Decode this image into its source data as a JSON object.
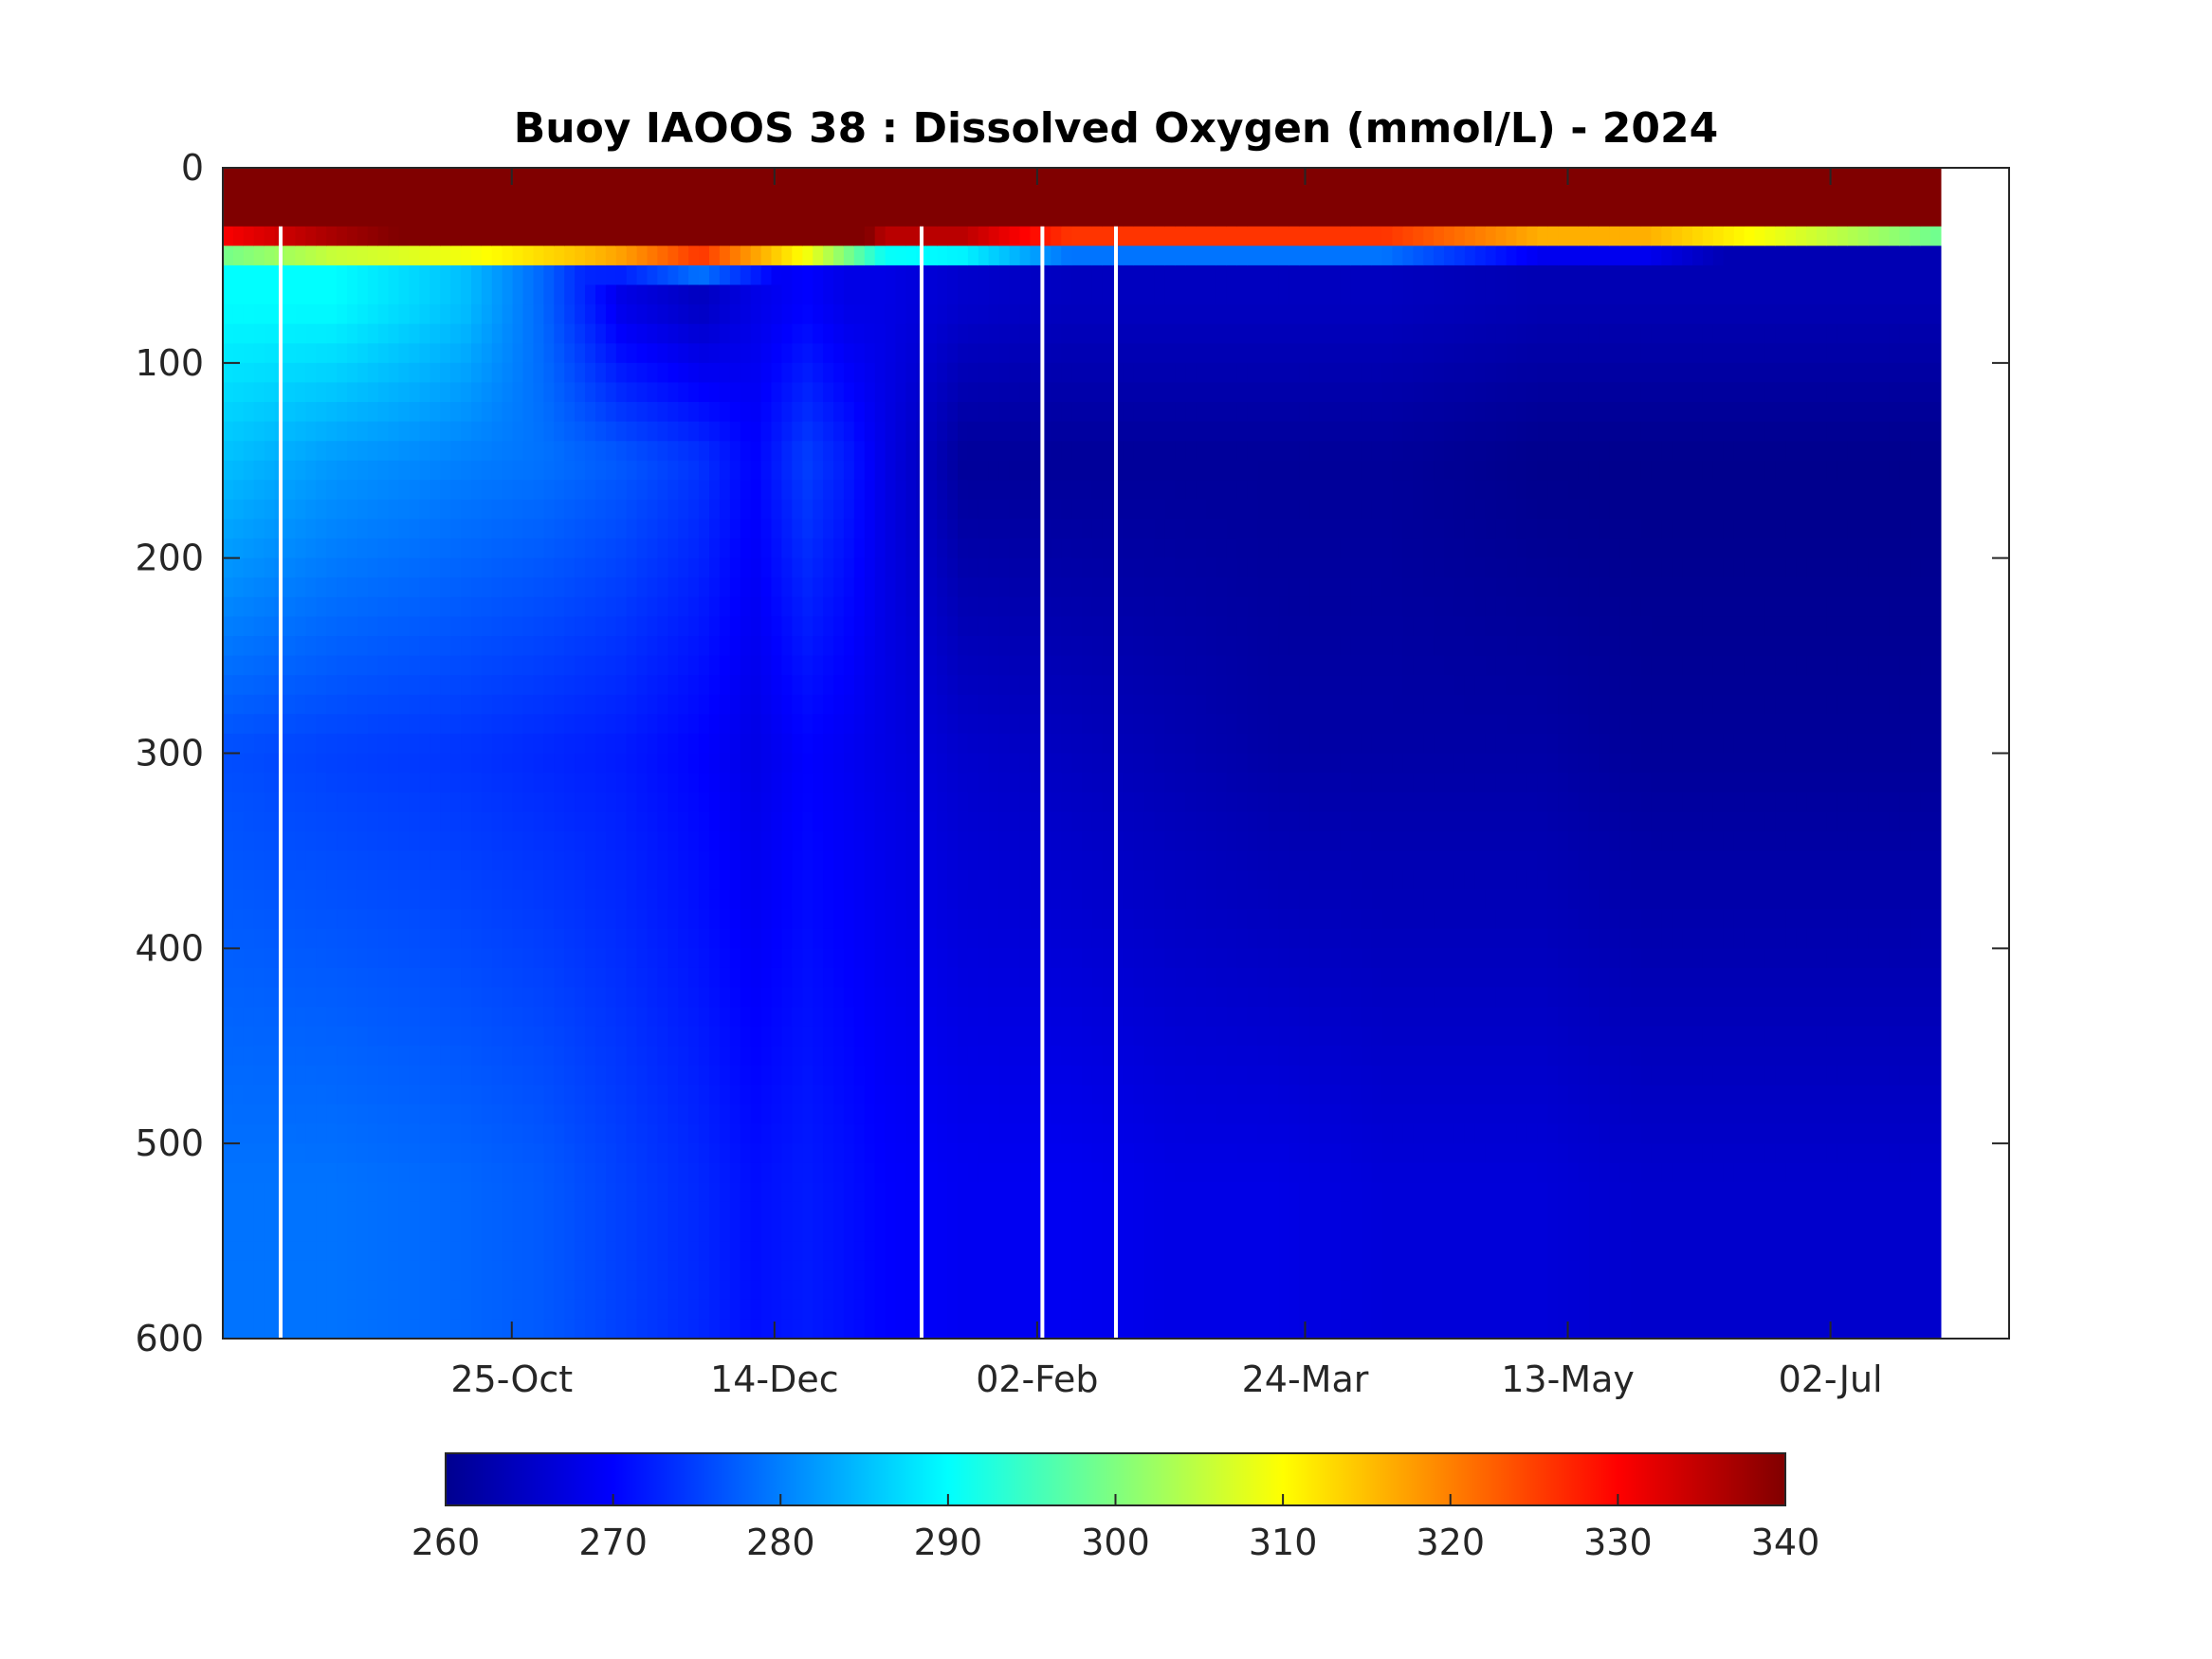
{
  "chart_data": {
    "type": "heatmap",
    "title": "Buoy IAOOS 38 : Dissolved Oxygen (mmol/L) - 2024",
    "xlabel": "",
    "ylabel": "",
    "x_ticks": [
      "25-Oct",
      "14-Dec",
      "02-Feb",
      "24-Mar",
      "13-May",
      "02-Jul"
    ],
    "y_ticks": [
      "0",
      "100",
      "200",
      "300",
      "400",
      "500",
      "600"
    ],
    "ylim": [
      0,
      600
    ],
    "y_reversed": true,
    "x_range": [
      "2023-08-31",
      "2024-08-05"
    ],
    "data_x_range": [
      "2023-08-31",
      "2024-07-23"
    ],
    "colorbar": {
      "colormap": "jet",
      "clim": [
        260,
        340
      ],
      "ticks": [
        "260",
        "270",
        "280",
        "290",
        "300",
        "310",
        "320",
        "330",
        "340"
      ]
    },
    "profiles_day": [
      0,
      20,
      45,
      60,
      75,
      90,
      100,
      110,
      118,
      125,
      140,
      160,
      180,
      200,
      220,
      250,
      270,
      300,
      330
    ],
    "layer_values": {
      "surface_layer_0_50m": [
        340,
        340,
        340,
        340,
        340,
        340,
        340,
        340,
        340,
        340,
        340,
        340,
        340,
        340,
        340,
        340,
        340,
        340,
        340
      ],
      "transition_50_100m": [
        290,
        290,
        285,
        278,
        268,
        265,
        268,
        270,
        268,
        268,
        266,
        265,
        265,
        265,
        265,
        264,
        264,
        264,
        264
      ],
      "depth_100_200m": [
        285,
        282,
        280,
        279,
        277,
        274,
        270,
        275,
        272,
        268,
        262,
        262,
        262,
        262,
        262,
        261,
        261,
        261,
        261
      ],
      "depth_200_400m": [
        276,
        275,
        274,
        273,
        272,
        270,
        268,
        270,
        269,
        268,
        266,
        265,
        264,
        263,
        263,
        263,
        262,
        262,
        262
      ],
      "depth_400_600m": [
        279,
        279,
        278,
        277,
        275,
        273,
        271,
        272,
        271,
        270,
        269,
        269,
        268,
        268,
        267,
        267,
        266,
        266,
        266
      ]
    },
    "mixed_layer_depth_m": [
      40,
      42,
      44,
      46,
      48,
      50,
      48,
      46,
      44,
      42,
      42,
      40,
      40,
      40,
      40,
      38,
      38,
      36,
      34
    ],
    "data_gaps_day": [
      11,
      133,
      156,
      170
    ]
  }
}
